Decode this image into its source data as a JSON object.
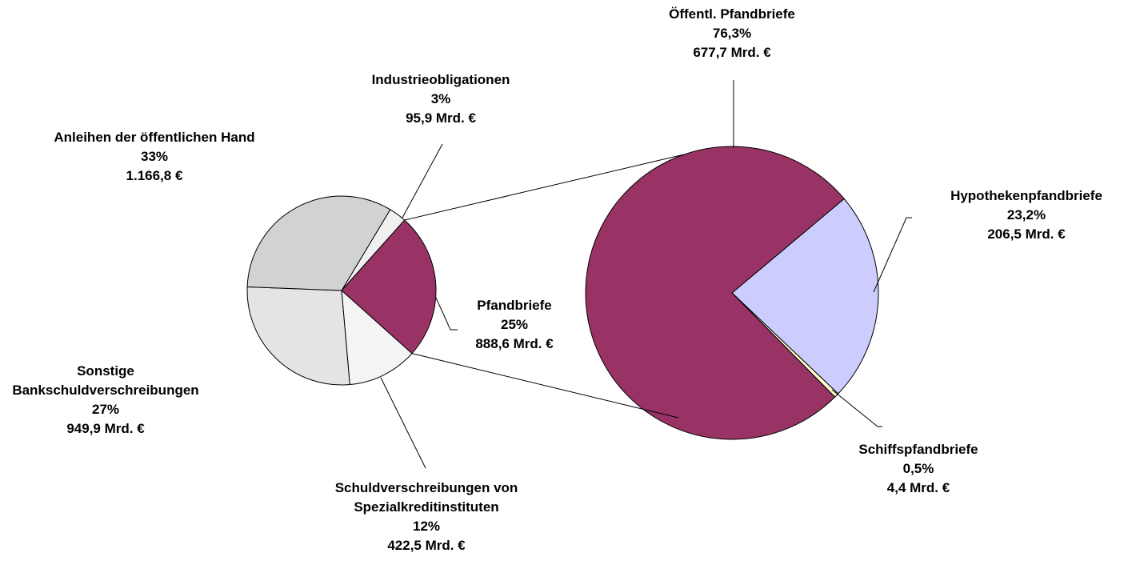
{
  "chart_data": [
    {
      "type": "pie",
      "categories": [
        "Industrieobligationen",
        "Pfandbriefe",
        "Schuldverschreibungen von Spezialkreditinstituten",
        "Sonstige Bankschuldverschreibungen",
        "Anleihen der öffentlichen Hand"
      ],
      "values": [
        3,
        25,
        12,
        27,
        33
      ],
      "value_labels": [
        "3%",
        "25%",
        "12%",
        "27%",
        "33%"
      ],
      "amounts": [
        95.9,
        888.6,
        422.5,
        949.9,
        1166.8
      ],
      "amount_labels": [
        "95,9 Mrd. €",
        "888,6 Mrd. €",
        "422,5 Mrd. €",
        "949,9 Mrd. €",
        "1.166,8 €"
      ],
      "colors": [
        "#f0f0f0",
        "#993366",
        "#f4f4f4",
        "#e4e4e4",
        "#d2d2d2"
      ]
    },
    {
      "type": "pie",
      "categories": [
        "Hypothekenpfandbriefe",
        "Schiffspfandbriefe",
        "Öffentl. Pfandbriefe"
      ],
      "values": [
        23.2,
        0.5,
        76.3
      ],
      "value_labels": [
        "23,2%",
        "0,5%",
        "76,3%"
      ],
      "amounts": [
        206.5,
        4.4,
        677.7
      ],
      "amount_labels": [
        "206,5 Mrd. €",
        "4,4 Mrd. €",
        "677,7 Mrd. €"
      ],
      "colors": [
        "#ccccff",
        "#ffffcc",
        "#993366"
      ]
    }
  ]
}
